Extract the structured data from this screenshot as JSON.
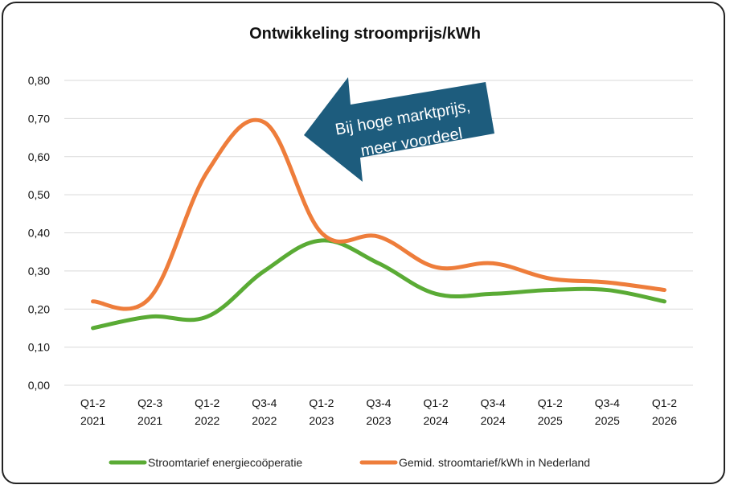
{
  "chart_data": {
    "type": "line",
    "title": "Ontwikkeling stroomprijs/kWh",
    "categories": [
      [
        "Q1-2",
        "2021"
      ],
      [
        "Q2-3",
        "2021"
      ],
      [
        "Q1-2",
        "2022"
      ],
      [
        "Q3-4",
        "2022"
      ],
      [
        "Q1-2",
        "2023"
      ],
      [
        "Q3-4",
        "2023"
      ],
      [
        "Q1-2",
        "2024"
      ],
      [
        "Q3-4",
        "2024"
      ],
      [
        "Q1-2",
        "2025"
      ],
      [
        "Q3-4",
        "2025"
      ],
      [
        "Q1-2",
        "2026"
      ]
    ],
    "y_ticks": [
      "0,00",
      "0,10",
      "0,20",
      "0,30",
      "0,40",
      "0,50",
      "0,60",
      "0,70",
      "0,80"
    ],
    "ylim": [
      0,
      0.8
    ],
    "grid": true,
    "legend_position": "bottom",
    "series": [
      {
        "name": "Stroomtarief energiecoöperatie",
        "color": "#5aab35",
        "values": [
          0.15,
          0.18,
          0.18,
          0.3,
          0.38,
          0.32,
          0.24,
          0.24,
          0.25,
          0.25,
          0.22
        ]
      },
      {
        "name": "Gemid. stroomtarief/kWh in Nederland",
        "color": "#ee7d3b",
        "values": [
          0.22,
          0.23,
          0.56,
          0.69,
          0.4,
          0.39,
          0.31,
          0.32,
          0.28,
          0.27,
          0.25
        ]
      }
    ],
    "annotation": {
      "lines": [
        "Bij hoge marktprijs,",
        "meer voordeel"
      ],
      "color": "#1d5c7d"
    }
  }
}
